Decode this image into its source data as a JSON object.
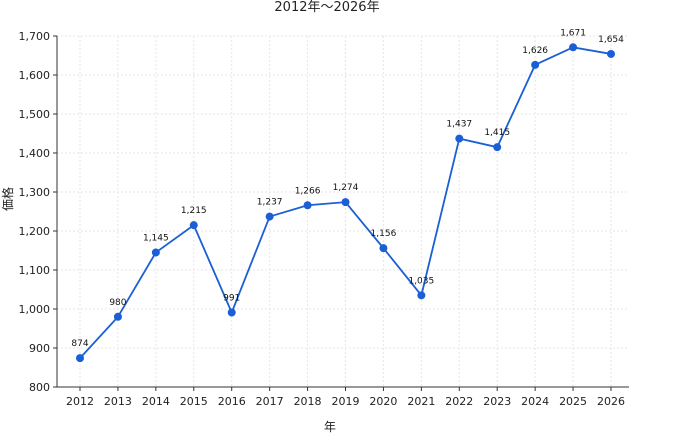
{
  "chart_data": {
    "type": "line",
    "title": "2012年～2026年",
    "xlabel": "年",
    "ylabel": "価格",
    "x": [
      "2012",
      "2013",
      "2014",
      "2015",
      "2016",
      "2017",
      "2018",
      "2019",
      "2020",
      "2021",
      "2022",
      "2023",
      "2024",
      "2025",
      "2026"
    ],
    "series": [
      {
        "values": [
          874,
          980,
          1145,
          1215,
          991,
          1237,
          1266,
          1274,
          1156,
          1035,
          1437,
          1415,
          1626,
          1671,
          1654
        ],
        "labels": [
          "874",
          "980",
          "1,145",
          "1,215",
          "991",
          "1,237",
          "1,266",
          "1,274",
          "1,156",
          "1,035",
          "1,437",
          "1,415",
          "1,626",
          "1,671",
          "1,654"
        ],
        "color": "#1a5fd6"
      }
    ],
    "ylim": [
      800,
      1700
    ],
    "yticks": [
      800,
      900,
      1000,
      1100,
      1200,
      1300,
      1400,
      1500,
      1600,
      1700
    ],
    "ytick_labels": [
      "800",
      "900",
      "1,000",
      "1,100",
      "1,200",
      "1,300",
      "1,400",
      "1,500",
      "1,600",
      "1,700"
    ],
    "grid": true,
    "legend": "none"
  }
}
